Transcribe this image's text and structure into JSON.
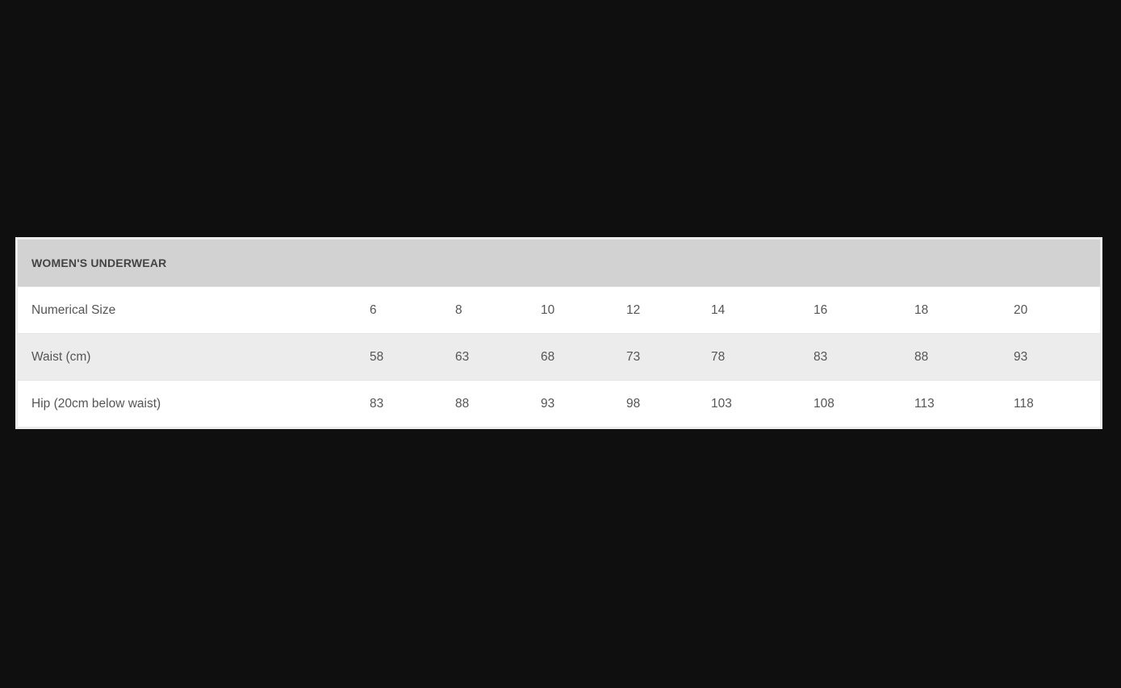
{
  "table": {
    "title": "WOMEN'S UNDERWEAR",
    "rows": [
      {
        "label": "Numerical Size",
        "values": [
          "6",
          "8",
          "10",
          "12",
          "14",
          "16",
          "18",
          "20"
        ]
      },
      {
        "label": "Waist (cm)",
        "values": [
          "58",
          "63",
          "68",
          "73",
          "78",
          "83",
          "88",
          "93"
        ]
      },
      {
        "label": "Hip (20cm below waist)",
        "values": [
          "83",
          "88",
          "93",
          "98",
          "103",
          "108",
          "113",
          "118"
        ]
      }
    ]
  }
}
